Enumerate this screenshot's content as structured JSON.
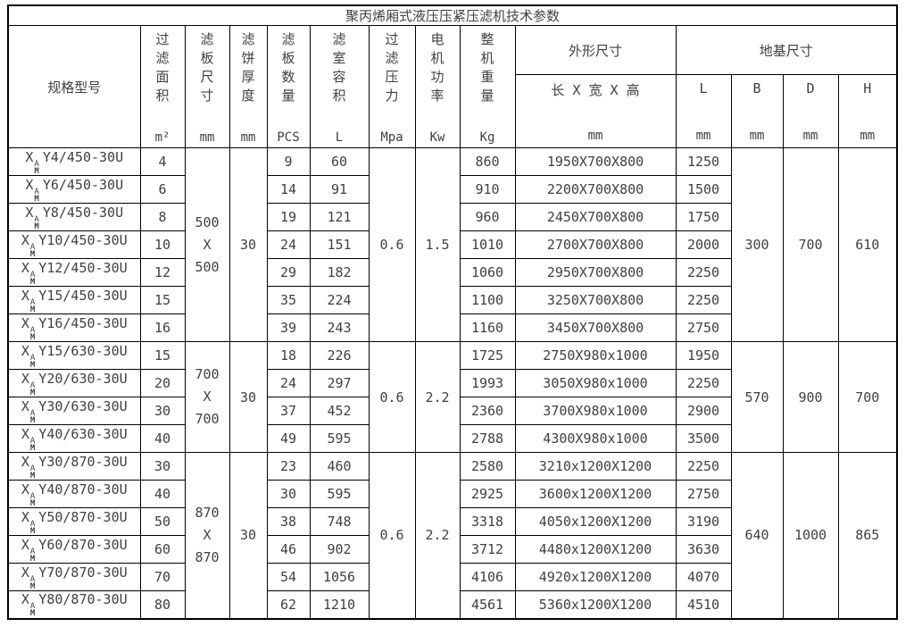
{
  "title": "聚丙烯厢式液压压紧压滤机技术参数",
  "colors": {
    "border": "#000000",
    "text": "#404040",
    "background": "#ffffff"
  },
  "model_prefix": {
    "base": "X",
    "sup": "A",
    "sub": "M"
  },
  "header": {
    "model": "规格型号",
    "stat_cols": [
      {
        "label": "过滤面积",
        "unit": "m²"
      },
      {
        "label": "滤板尺寸",
        "unit": "mm"
      },
      {
        "label": "滤饼厚度",
        "unit": "mm"
      },
      {
        "label": "滤板数量",
        "unit": "PCS"
      },
      {
        "label": "滤室容积",
        "unit": "L"
      },
      {
        "label": "过滤压力",
        "unit": "Mpa"
      },
      {
        "label": "电机功率",
        "unit": "Kw"
      },
      {
        "label": "整机重量",
        "unit": "Kg"
      }
    ],
    "outline_group": "外形尺寸",
    "outline_sub": {
      "label": "长 X 宽 X 高",
      "unit": "mm"
    },
    "foundation_group": "地基尺寸",
    "foundation_cols": [
      {
        "label": "L",
        "unit": "mm"
      },
      {
        "label": "B",
        "unit": "mm"
      },
      {
        "label": "D",
        "unit": "mm"
      },
      {
        "label": "H",
        "unit": "mm"
      }
    ]
  },
  "groups": [
    {
      "plate_size_lines": [
        "500",
        "X",
        "500"
      ],
      "cake_thickness": "30",
      "pressure": "0.6",
      "power": "1.5",
      "foundation": {
        "B": "300",
        "D": "700",
        "H": "610"
      },
      "rows": [
        {
          "model": "Y4/450-30U",
          "area": "4",
          "plates": "9",
          "volume": "60",
          "weight": "860",
          "dims": "1950X700X800",
          "l": "1250"
        },
        {
          "model": "Y6/450-30U",
          "area": "6",
          "plates": "14",
          "volume": "91",
          "weight": "910",
          "dims": "2200X700X800",
          "l": "1500"
        },
        {
          "model": "Y8/450-30U",
          "area": "8",
          "plates": "19",
          "volume": "121",
          "weight": "960",
          "dims": "2450X700X800",
          "l": "1750"
        },
        {
          "model": "Y10/450-30U",
          "area": "10",
          "plates": "24",
          "volume": "151",
          "weight": "1010",
          "dims": "2700X700X800",
          "l": "2000"
        },
        {
          "model": "Y12/450-30U",
          "area": "12",
          "plates": "29",
          "volume": "182",
          "weight": "1060",
          "dims": "2950X700X800",
          "l": "2250"
        },
        {
          "model": "Y15/450-30U",
          "area": "15",
          "plates": "35",
          "volume": "224",
          "weight": "1100",
          "dims": "3250X700X800",
          "l": "2250"
        },
        {
          "model": "Y16/450-30U",
          "area": "16",
          "plates": "39",
          "volume": "243",
          "weight": "1160",
          "dims": "3450X700X800",
          "l": "2750"
        }
      ]
    },
    {
      "plate_size_lines": [
        "700",
        "X",
        "700"
      ],
      "cake_thickness": "30",
      "pressure": "0.6",
      "power": "2.2",
      "foundation": {
        "B": "570",
        "D": "900",
        "H": "700"
      },
      "rows": [
        {
          "model": "Y15/630-30U",
          "area": "15",
          "plates": "18",
          "volume": "226",
          "weight": "1725",
          "dims": "2750X980x1000",
          "l": "1950"
        },
        {
          "model": "Y20/630-30U",
          "area": "20",
          "plates": "24",
          "volume": "297",
          "weight": "1993",
          "dims": "3050X980x1000",
          "l": "2250"
        },
        {
          "model": "Y30/630-30U",
          "area": "30",
          "plates": "37",
          "volume": "452",
          "weight": "2360",
          "dims": "3700X980x1000",
          "l": "2900"
        },
        {
          "model": "Y40/630-30U",
          "area": "40",
          "plates": "49",
          "volume": "595",
          "weight": "2788",
          "dims": "4300X980x1000",
          "l": "3500"
        }
      ]
    },
    {
      "plate_size_lines": [
        "870",
        "X",
        "870"
      ],
      "cake_thickness": "30",
      "pressure": "0.6",
      "power": "2.2",
      "foundation": {
        "B": "640",
        "D": "1000",
        "H": "865"
      },
      "rows": [
        {
          "model": "Y30/870-30U",
          "area": "30",
          "plates": "23",
          "volume": "460",
          "weight": "2580",
          "dims": "3210x1200X1200",
          "l": "2250"
        },
        {
          "model": "Y40/870-30U",
          "area": "40",
          "plates": "30",
          "volume": "595",
          "weight": "2925",
          "dims": "3600x1200X1200",
          "l": "2750"
        },
        {
          "model": "Y50/870-30U",
          "area": "50",
          "plates": "38",
          "volume": "748",
          "weight": "3318",
          "dims": "4050x1200X1200",
          "l": "3190"
        },
        {
          "model": "Y60/870-30U",
          "area": "60",
          "plates": "46",
          "volume": "902",
          "weight": "3712",
          "dims": "4480x1200X1200",
          "l": "3630"
        },
        {
          "model": "Y70/870-30U",
          "area": "70",
          "plates": "54",
          "volume": "1056",
          "weight": "4106",
          "dims": "4920x1200X1200",
          "l": "4070"
        },
        {
          "model": "Y80/870-30U",
          "area": "80",
          "plates": "62",
          "volume": "1210",
          "weight": "4561",
          "dims": "5360x1200X1200",
          "l": "4510"
        }
      ]
    }
  ]
}
